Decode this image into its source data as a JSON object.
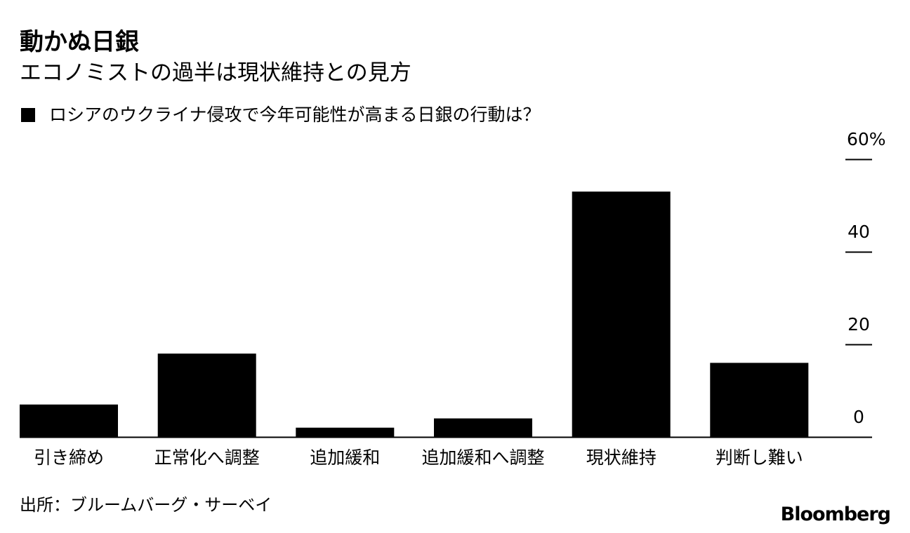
{
  "header": {
    "title": "動かぬ日銀",
    "subtitle": "エコノミストの過半は現状維持との見方"
  },
  "legend": {
    "label": "ロシアのウクライナ侵攻で今年可能性が高まる日銀の行動は？",
    "color": "#000000"
  },
  "footer": {
    "source": "出所：ブルームバーグ・サーベイ",
    "brand": "Bloomberg"
  },
  "chart_data": {
    "type": "bar",
    "categories": [
      "引き締め",
      "正常化へ調整",
      "追加緩和",
      "追加緩和へ調整",
      "現状維持",
      "判断し難い"
    ],
    "series": [
      {
        "name": "ロシアのウクライナ侵攻で今年可能性が高まる日銀の行動は？",
        "values": [
          7,
          18,
          2,
          4,
          53,
          16
        ],
        "color": "#000000"
      }
    ],
    "yticks": [
      "0",
      "20",
      "40",
      "60%"
    ],
    "ytick_values": [
      0,
      20,
      40,
      60
    ],
    "ylim": [
      0,
      60
    ],
    "grid": false,
    "axis_side": "right",
    "title": "",
    "xlabel": "",
    "ylabel": ""
  }
}
